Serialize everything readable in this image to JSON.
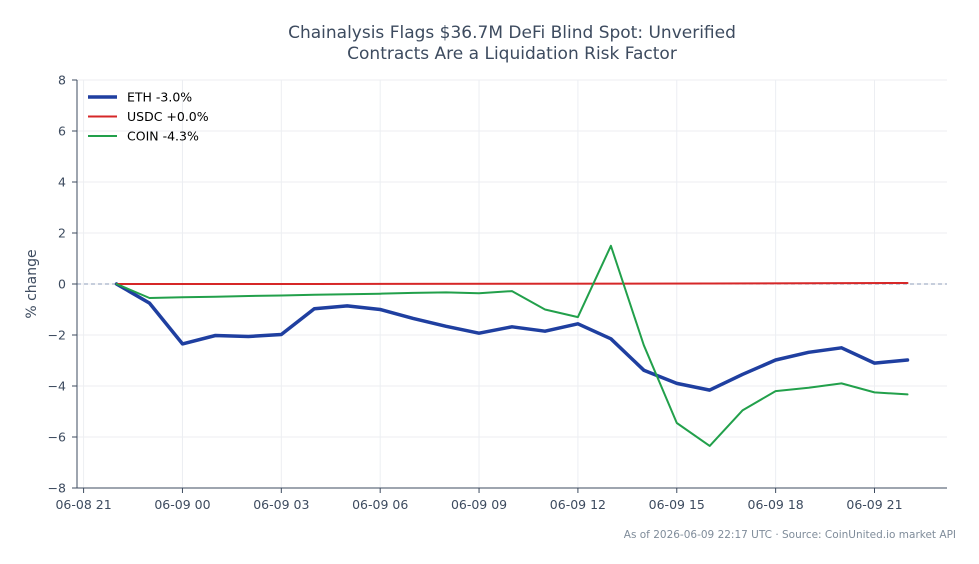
{
  "chart_data": {
    "type": "line",
    "title": [
      "Chainalysis Flags $36.7M DeFi Blind Spot: Unverified",
      "Contracts Are a Liquidation Risk Factor"
    ],
    "xlabel": "",
    "ylabel": "% change",
    "ylim": [
      -8,
      8
    ],
    "yticks": [
      "−8",
      "−6",
      "−4",
      "−2",
      "0",
      "2",
      "4",
      "6",
      "8"
    ],
    "x_tick_labels": [
      "06-08 21",
      "06-09 00",
      "06-09 03",
      "06-09 06",
      "06-09 09",
      "06-09 12",
      "06-09 15",
      "06-09 18",
      "06-09 21"
    ],
    "x_tick_hours": [
      21,
      24,
      27,
      30,
      33,
      36,
      39,
      42,
      45
    ],
    "xlim_hours": [
      20.8,
      47.2
    ],
    "grid": true,
    "zero_line": true,
    "legend_position": "top-left",
    "series": [
      {
        "name": "ETH -3.0%",
        "color": "#1f3fa0",
        "width": 3.5,
        "x_hours": [
          22,
          23,
          24,
          25,
          26,
          27,
          28,
          29,
          30,
          31,
          32,
          33,
          34,
          35,
          36,
          37,
          38,
          39,
          40,
          41,
          42,
          43,
          44,
          45,
          46
        ],
        "values": [
          0,
          -0.75,
          -2.35,
          -2.02,
          -2.06,
          -1.98,
          -0.97,
          -0.86,
          -1.0,
          -1.35,
          -1.66,
          -1.93,
          -1.68,
          -1.85,
          -1.56,
          -2.15,
          -3.38,
          -3.9,
          -4.16,
          -3.54,
          -2.98,
          -2.68,
          -2.5,
          -3.1,
          -2.98
        ]
      },
      {
        "name": "USDC +0.0%",
        "color": "#d62728",
        "width": 2,
        "x_hours": [
          22,
          28,
          34,
          40,
          46
        ],
        "values": [
          0,
          0.0,
          0.01,
          0.02,
          0.04
        ]
      },
      {
        "name": "COIN -4.3%",
        "color": "#22a04b",
        "width": 2,
        "x_hours": [
          22,
          23,
          24,
          25,
          26,
          27,
          28,
          29,
          30,
          31,
          32,
          33,
          34,
          35,
          36,
          37,
          38,
          39,
          40,
          41,
          42,
          43,
          44,
          45,
          46
        ],
        "values": [
          0,
          -0.55,
          -0.52,
          -0.5,
          -0.47,
          -0.45,
          -0.42,
          -0.4,
          -0.38,
          -0.35,
          -0.33,
          -0.36,
          -0.28,
          -1.0,
          -1.3,
          1.5,
          -2.4,
          -5.45,
          -6.35,
          -4.95,
          -4.2,
          -4.07,
          -3.9,
          -4.25,
          -4.33
        ]
      }
    ],
    "footnote": "As of 2026-06-09 22:17 UTC · Source: CoinUnited.io market API"
  }
}
